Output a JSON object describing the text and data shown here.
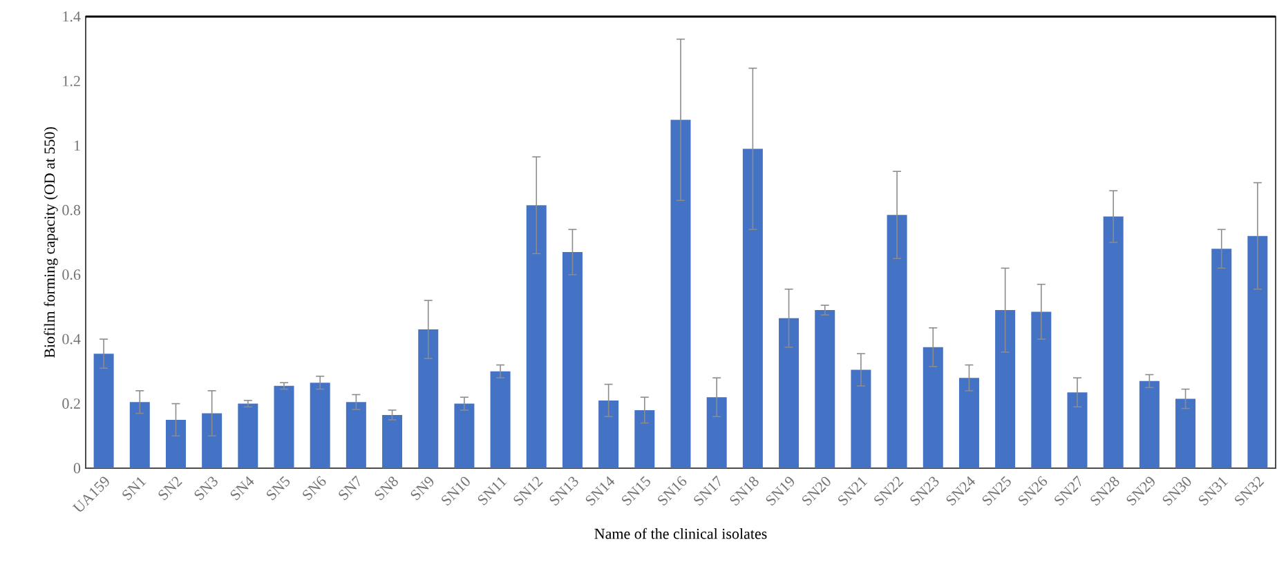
{
  "chart_data": {
    "type": "bar",
    "xlabel": "Name of the clinical isolates",
    "ylabel": "Biofilm forming capacity (OD at 550)",
    "categories": [
      "UA159",
      "SN1",
      "SN2",
      "SN3",
      "SN4",
      "SN5",
      "SN6",
      "SN7",
      "SN8",
      "SN9",
      "SN10",
      "SN11",
      "SN12",
      "SN13",
      "SN14",
      "SN15",
      "SN16",
      "SN17",
      "SN18",
      "SN19",
      "SN20",
      "SN21",
      "SN22",
      "SN23",
      "SN24",
      "SN25",
      "SN26",
      "SN27",
      "SN28",
      "SN29",
      "SN30",
      "SN31",
      "SN32"
    ],
    "values": [
      0.355,
      0.205,
      0.15,
      0.17,
      0.2,
      0.255,
      0.265,
      0.205,
      0.165,
      0.43,
      0.2,
      0.3,
      0.815,
      0.67,
      0.21,
      0.18,
      1.08,
      0.22,
      0.99,
      0.465,
      0.49,
      0.305,
      0.785,
      0.375,
      0.28,
      0.49,
      0.485,
      0.235,
      0.78,
      0.27,
      0.215,
      0.68,
      0.72
    ],
    "errors": [
      0.045,
      0.035,
      0.05,
      0.07,
      0.01,
      0.01,
      0.02,
      0.023,
      0.015,
      0.09,
      0.02,
      0.02,
      0.15,
      0.07,
      0.05,
      0.04,
      0.25,
      0.06,
      0.25,
      0.09,
      0.015,
      0.05,
      0.135,
      0.06,
      0.04,
      0.13,
      0.085,
      0.045,
      0.08,
      0.02,
      0.03,
      0.06,
      0.165
    ],
    "color": "#4472c4",
    "ylim": [
      0,
      1.4
    ],
    "yticks": [
      0,
      0.2,
      0.4,
      0.6,
      0.8,
      1,
      1.2,
      1.4
    ],
    "grid": false
  }
}
